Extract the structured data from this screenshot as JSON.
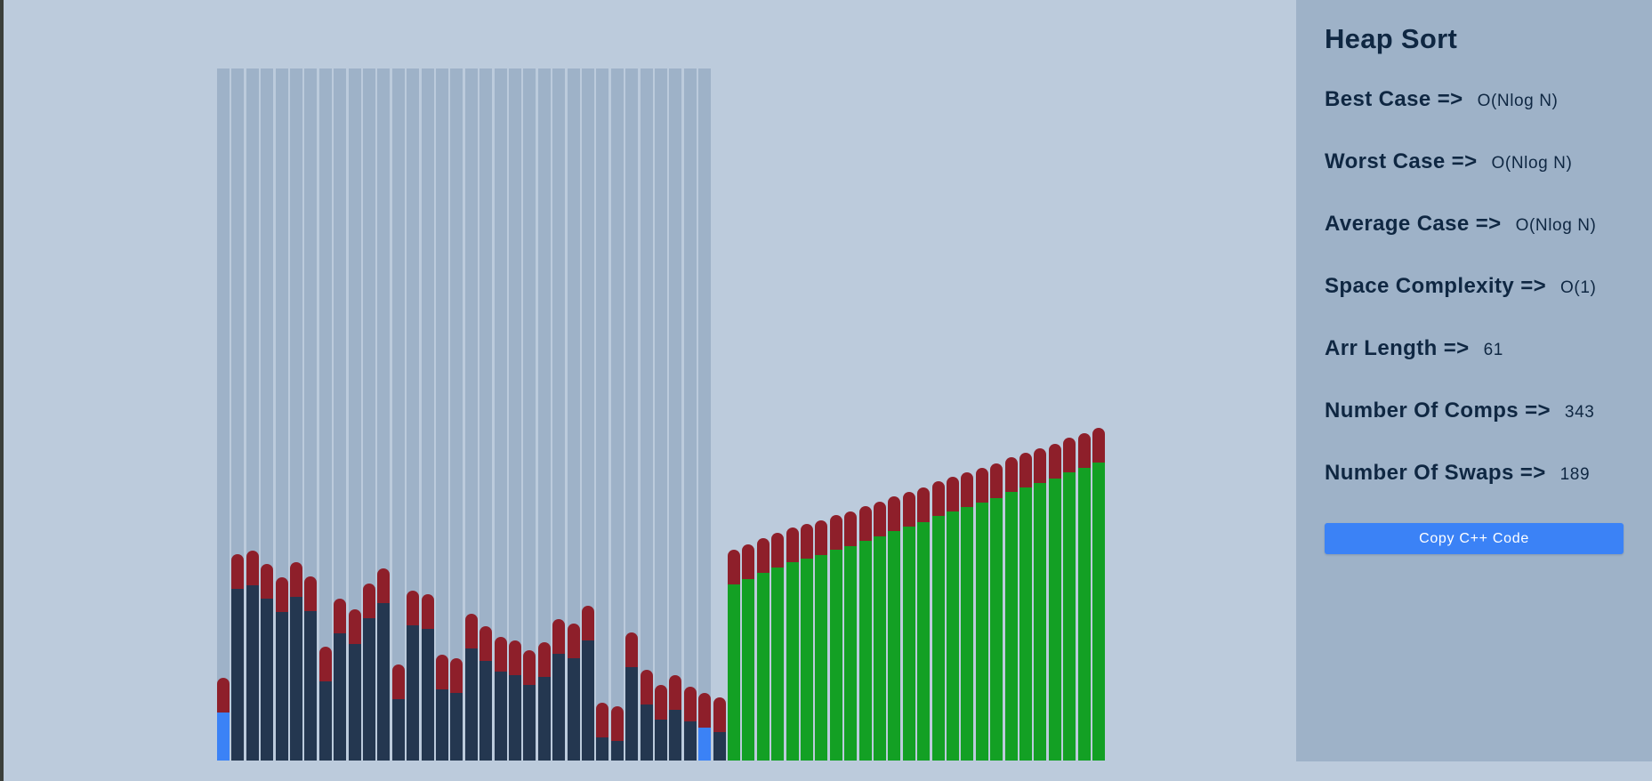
{
  "panel": {
    "title": "Heap Sort",
    "stats": [
      {
        "label": "Best Case =>",
        "value": "O(Nlog N)"
      },
      {
        "label": "Worst Case =>",
        "value": "O(Nlog N)"
      },
      {
        "label": "Average Case =>",
        "value": "O(Nlog N)"
      },
      {
        "label": "Space Complexity =>",
        "value": "O(1)"
      },
      {
        "label": "Arr Length =>",
        "value": "61"
      },
      {
        "label": "Number Of Comps =>",
        "value": "343"
      },
      {
        "label": "Number Of Swaps =>",
        "value": "189"
      }
    ],
    "copy_button_label": "Copy C++ Code"
  },
  "colors": {
    "background": "#bccbdc",
    "panel": "#9eb2c8",
    "heap_region": "#9eb2c8",
    "bar_cap": "#8e1f2a",
    "unsorted": "#243750",
    "sorted": "#13a024",
    "active": "#3b82f6",
    "button": "#3b82f6",
    "text": "#0f2742"
  },
  "bars": {
    "heap_size": 34,
    "values": [
      80,
      213,
      217,
      203,
      188,
      205,
      189,
      113,
      165,
      154,
      182,
      198,
      94,
      174,
      170,
      105,
      101,
      149,
      136,
      124,
      120,
      110,
      118,
      143,
      138,
      158,
      53,
      49,
      129,
      88,
      72,
      83,
      70,
      63,
      59,
      218,
      224,
      231,
      237,
      242,
      246,
      250,
      256,
      260,
      265,
      270,
      276,
      281,
      286,
      292,
      297,
      302,
      307,
      312,
      318,
      323,
      328,
      333,
      339,
      344,
      350
    ],
    "states": [
      "active",
      "unsorted",
      "unsorted",
      "unsorted",
      "unsorted",
      "unsorted",
      "unsorted",
      "unsorted",
      "unsorted",
      "unsorted",
      "unsorted",
      "unsorted",
      "unsorted",
      "unsorted",
      "unsorted",
      "unsorted",
      "unsorted",
      "unsorted",
      "unsorted",
      "unsorted",
      "unsorted",
      "unsorted",
      "unsorted",
      "unsorted",
      "unsorted",
      "unsorted",
      "unsorted",
      "unsorted",
      "unsorted",
      "unsorted",
      "unsorted",
      "unsorted",
      "unsorted",
      "active",
      "unsorted",
      "sorted",
      "sorted",
      "sorted",
      "sorted",
      "sorted",
      "sorted",
      "sorted",
      "sorted",
      "sorted",
      "sorted",
      "sorted",
      "sorted",
      "sorted",
      "sorted",
      "sorted",
      "sorted",
      "sorted",
      "sorted",
      "sorted",
      "sorted",
      "sorted",
      "sorted",
      "sorted",
      "sorted",
      "sorted",
      "sorted"
    ]
  }
}
